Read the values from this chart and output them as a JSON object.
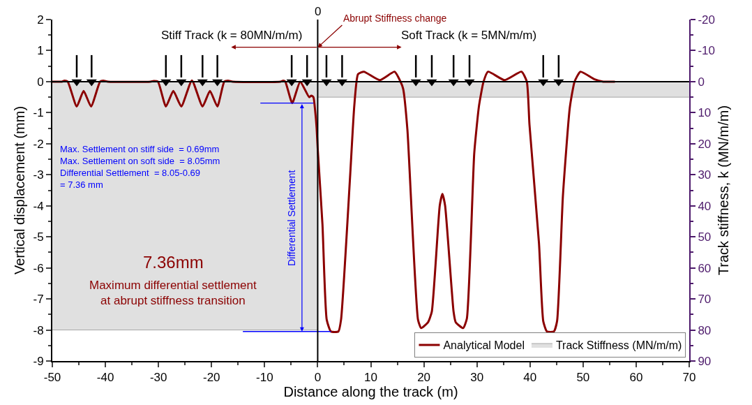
{
  "chart_data": {
    "type": "line",
    "xlabel": "Distance along the track (m)",
    "ylabel": "Vertical displacement (mm)",
    "y2label": "Track stiffness, k (MN/m/m)",
    "xlim": [
      -50,
      70
    ],
    "xticks": [
      -50,
      -40,
      -30,
      -20,
      -10,
      0,
      10,
      20,
      30,
      40,
      50,
      60,
      70
    ],
    "ylim": [
      -9,
      2
    ],
    "yticks": [
      -9,
      -8,
      -7,
      -6,
      -5,
      -4,
      -3,
      -2,
      -1,
      0,
      1,
      2
    ],
    "y2lim": [
      90,
      -20
    ],
    "y2ticks": [
      -20,
      -10,
      0,
      10,
      20,
      30,
      40,
      50,
      60,
      70,
      80,
      90
    ],
    "legend": "bottom right",
    "marker": "none",
    "line_style": "solid",
    "series": [
      {
        "name": "Track Stiffness (MN/m/m)",
        "type": "area",
        "axis": "y2",
        "color": "#e0e0e0",
        "x": [
          -50,
          0,
          0,
          70
        ],
        "values": [
          80,
          80,
          5,
          5
        ]
      },
      {
        "name": "Analytical Model",
        "color": "#8b0000",
        "x": [
          -50,
          -48.2,
          -47.7,
          -47.1,
          -45.4,
          -44.1,
          -42.7,
          -41,
          -40.4,
          -39.5,
          -31.5,
          -30.9,
          -30.1,
          -28.6,
          -27.2,
          -25.7,
          -23.7,
          -21.7,
          -20.3,
          -18.9,
          -17.6,
          -16.9,
          -16,
          -7,
          -6.5,
          -6.1,
          -4.8,
          -3.3,
          -1.6,
          -1.2,
          -0.8,
          -0.5,
          -0.2,
          0,
          0.9,
          1.7,
          2.5,
          3.9,
          4.4,
          6.1,
          6.9,
          7.6,
          8.7,
          11.7,
          14.5,
          15.6,
          16.1,
          16.9,
          18.9,
          19.5,
          20.8,
          21.5,
          23,
          23.5,
          24,
          25.6,
          26,
          27.4,
          28.1,
          29.5,
          30.4,
          31.25,
          32.1,
          35.2,
          38.4,
          39.4,
          39.9,
          41.7,
          42.5,
          43.2,
          44.5,
          45.1,
          46.2,
          47.5,
          48.4,
          49.5,
          52.1,
          53.8,
          56
        ],
        "values": [
          0,
          0,
          0.03,
          0,
          -0.8,
          -0.3,
          -0.8,
          0,
          0.03,
          0,
          0,
          0.02,
          0,
          -0.8,
          -0.3,
          -0.8,
          0.04,
          -0.8,
          -0.3,
          -0.8,
          0,
          0.03,
          0,
          0,
          0.03,
          0,
          -0.69,
          0,
          -0.5,
          -0.45,
          -0.5,
          -0.9,
          -1.5,
          -2.15,
          -4.6,
          -7.67,
          -8.05,
          -8.05,
          -7.67,
          -3.07,
          -0.77,
          0.24,
          0.32,
          0.05,
          0.32,
          0,
          -0.23,
          -1.54,
          -7.67,
          -7.94,
          -7.75,
          -7.41,
          -3.99,
          -3.62,
          -3.99,
          -7.41,
          -7.75,
          -7.94,
          -7.64,
          -2.3,
          -0.77,
          0,
          0.32,
          0.05,
          0.32,
          0,
          -1.38,
          -5.22,
          -7.72,
          -8.05,
          -8.05,
          -7.72,
          -3.69,
          -0.84,
          0,
          0.32,
          0.08,
          0,
          0
        ]
      },
      {
        "color": "#0000ff",
        "x": [
          -10.8,
          -0.8
        ],
        "values": [
          -0.69,
          -0.69
        ]
      },
      {
        "color": "#0000ff",
        "x": [
          -14.1,
          2.5
        ],
        "values": [
          -8.05,
          -8.05
        ]
      },
      {
        "type": "scatter",
        "color": "#000000",
        "marker": "triangle",
        "x": [
          -45.4,
          -42.6,
          -28.6,
          -25.7,
          -21.7,
          -18.9,
          -4.9,
          -2,
          1.65,
          4.6,
          18.5,
          21.5,
          25.6,
          28.6,
          42.5,
          45.4
        ],
        "values": [
          0,
          0,
          0,
          0,
          0,
          0,
          0,
          0,
          0,
          0,
          0,
          0,
          0,
          0,
          0,
          0
        ]
      }
    ],
    "ref_lines": [
      {
        "axis": "x",
        "value": 0,
        "label": "0",
        "color": "#000000"
      },
      {
        "axis": "y",
        "value": 0,
        "color": "#000000"
      }
    ],
    "annotations": [
      {
        "text": "Abrupt Stiffness change",
        "x": 0,
        "y": 1.1
      },
      "Stiff Track (k = 80MN/m/m)",
      "Soft Track (k = 5MN/m/m)",
      "Differential Settlement",
      "Max. Settlement on stiff side  = 0.69mm\nMax. Settlement on soft side  = 8.05mm\nDifferential Settlement  = 8.05-0.69\n= 7.36 mm",
      "7.36mm",
      "Maximum differential settlement\nat abrupt stiffness transition"
    ]
  }
}
